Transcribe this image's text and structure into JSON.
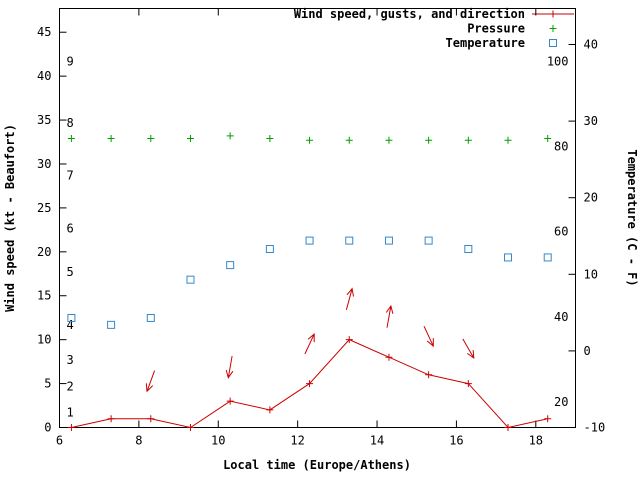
{
  "chart_data": {
    "type": "line",
    "title": "",
    "legend_position": "top-right-inside",
    "grid": false,
    "legend": [
      {
        "label": "Wind speed, gusts, and direction",
        "series": "wind_speed",
        "style": "line-plus",
        "color": "#cc0000"
      },
      {
        "label": "Pressure",
        "series": "pressure",
        "style": "plus",
        "color": "#00a000"
      },
      {
        "label": "Temperature",
        "series": "temperature",
        "style": "open-square",
        "color": "#3388cc"
      }
    ],
    "x_axis": {
      "label": "Local time (Europe/Athens)",
      "min": 6,
      "max": 19,
      "ticks": [
        6,
        8,
        10,
        12,
        14,
        16,
        18
      ]
    },
    "y_axis_left": {
      "label": "Wind speed (kt - Beaufort)",
      "min": 0,
      "max": 47.7,
      "ticks": [
        0,
        5,
        10,
        15,
        20,
        25,
        30,
        35,
        40,
        45
      ]
    },
    "y_axis_right": {
      "label": "Temperature (C - F)",
      "min": -10,
      "max": 44.7,
      "ticks": [
        -10,
        0,
        10,
        20,
        30,
        40
      ]
    },
    "beaufort_scale_labels": [
      {
        "text": "1",
        "kt": 1
      },
      {
        "text": "2",
        "kt": 4
      },
      {
        "text": "3",
        "kt": 7
      },
      {
        "text": "4",
        "kt": 11
      },
      {
        "text": "5",
        "kt": 17
      },
      {
        "text": "6",
        "kt": 22
      },
      {
        "text": "7",
        "kt": 28
      },
      {
        "text": "8",
        "kt": 34
      },
      {
        "text": "9",
        "kt": 41
      }
    ],
    "fahrenheit_scale_labels": [
      {
        "text": "20",
        "c": -6.7
      },
      {
        "text": "40",
        "c": 4.4
      },
      {
        "text": "60",
        "c": 15.6
      },
      {
        "text": "80",
        "c": 26.7
      },
      {
        "text": "100",
        "c": 37.8
      }
    ],
    "x_values": [
      6.3,
      7.3,
      8.3,
      9.3,
      10.3,
      11.3,
      12.3,
      13.3,
      14.3,
      15.3,
      16.3,
      17.3,
      18.3
    ],
    "series": [
      {
        "name": "wind_speed",
        "axis": "left",
        "color": "#cc0000",
        "marker": "plus",
        "line": true,
        "values": [
          0,
          1,
          1,
          0,
          3,
          2,
          5,
          10,
          8,
          6,
          5,
          0,
          1
        ]
      },
      {
        "name": "pressure",
        "axis": "left",
        "color": "#00a000",
        "marker": "plus",
        "line": false,
        "values": [
          32.9,
          32.9,
          32.9,
          32.9,
          33.2,
          32.9,
          32.7,
          32.7,
          32.7,
          32.7,
          32.7,
          32.7,
          32.9
        ]
      },
      {
        "name": "temperature",
        "axis": "right",
        "color": "#3388cc",
        "marker": "open-square",
        "line": false,
        "values": [
          4.3,
          3.4,
          4.3,
          9.3,
          11.2,
          13.3,
          14.4,
          14.4,
          14.4,
          14.4,
          13.3,
          12.2,
          12.2
        ]
      }
    ],
    "wind_direction_arrows": [
      {
        "x": 8.3,
        "kt": 5.3,
        "angle_deg": 200
      },
      {
        "x": 10.3,
        "kt": 6.9,
        "angle_deg": 190
      },
      {
        "x": 12.3,
        "kt": 9.5,
        "angle_deg": 25
      },
      {
        "x": 13.3,
        "kt": 14.6,
        "angle_deg": 15
      },
      {
        "x": 14.3,
        "kt": 12.6,
        "angle_deg": 10
      },
      {
        "x": 15.3,
        "kt": 10.4,
        "angle_deg": 155
      },
      {
        "x": 16.3,
        "kt": 9.0,
        "angle_deg": 150
      }
    ]
  }
}
